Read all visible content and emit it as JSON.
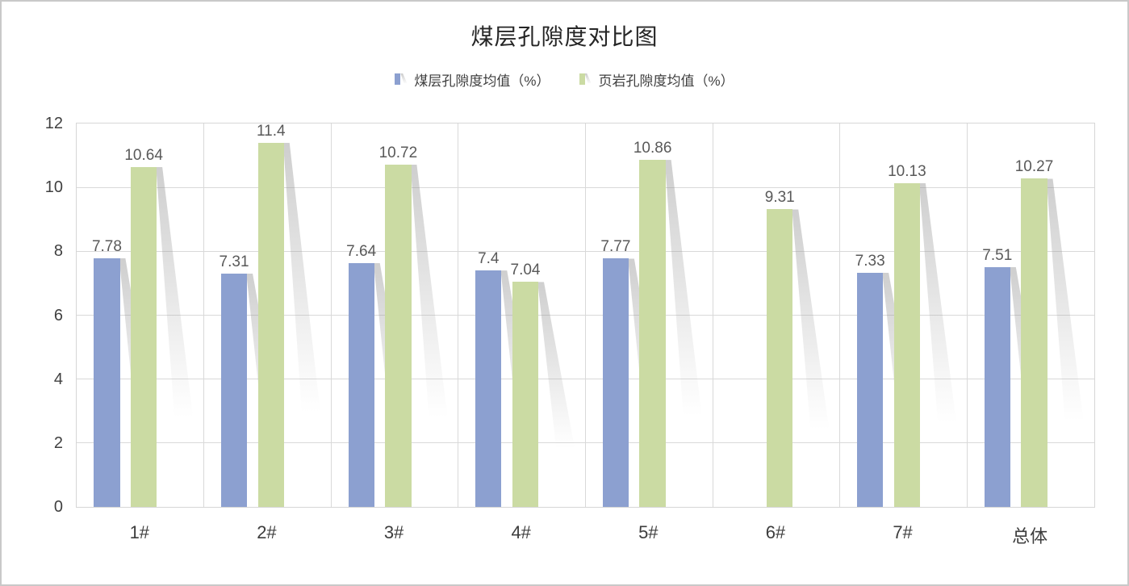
{
  "title": "煤层孔隙度对比图",
  "colors": {
    "coal": "#8CA0D0",
    "shale": "#CBDBA3",
    "grid": "#d9d9d9",
    "tick_text": "#404040",
    "label_text": "#595959",
    "title_text": "#262626",
    "frame_border": "#c9c9c9"
  },
  "chart_data": {
    "type": "bar",
    "title": "煤层孔隙度对比图",
    "categories": [
      "1#",
      "2#",
      "3#",
      "4#",
      "5#",
      "6#",
      "7#",
      "总体"
    ],
    "series": [
      {
        "name": "煤层孔隙度均值（%）",
        "color_key": "coal",
        "values": [
          7.78,
          7.31,
          7.64,
          7.4,
          7.77,
          null,
          7.33,
          7.51
        ]
      },
      {
        "name": "页岩孔隙度均值（%）",
        "color_key": "shale",
        "values": [
          10.64,
          11.4,
          10.72,
          7.04,
          10.86,
          9.31,
          10.13,
          10.27
        ]
      }
    ],
    "ylim": [
      0,
      12
    ],
    "ytick_step": 2,
    "yticks": [
      0,
      2,
      4,
      6,
      8,
      10,
      12
    ],
    "xlabel": "",
    "ylabel": "",
    "grid": true,
    "legend_position": "top",
    "data_labels": true,
    "bar_effect": "perspective-shadow"
  }
}
